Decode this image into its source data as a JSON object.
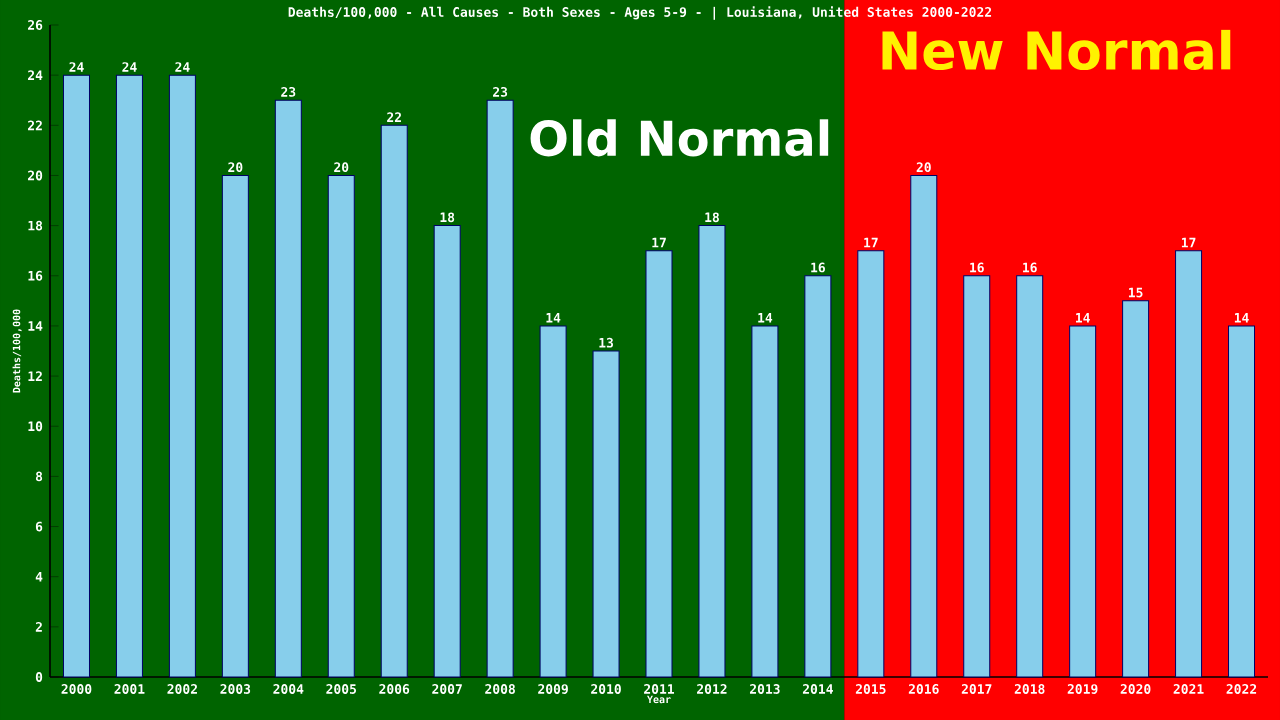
{
  "chart_data": {
    "type": "bar",
    "title": "Deaths/100,000 - All Causes - Both Sexes - Ages 5-9 - | Louisiana, United States 2000-2022",
    "xlabel": "Year",
    "ylabel": "Deaths/100,000",
    "categories": [
      "2000",
      "2001",
      "2002",
      "2003",
      "2004",
      "2005",
      "2006",
      "2007",
      "2008",
      "2009",
      "2010",
      "2011",
      "2012",
      "2013",
      "2014",
      "2015",
      "2016",
      "2017",
      "2018",
      "2019",
      "2020",
      "2021",
      "2022"
    ],
    "values": [
      24,
      24,
      24,
      20,
      23,
      20,
      22,
      18,
      23,
      14,
      13,
      17,
      18,
      14,
      16,
      17,
      20,
      16,
      16,
      14,
      15,
      17,
      14
    ],
    "color": "#87ceeb",
    "ylim": [
      0,
      26
    ],
    "yticks": [
      0,
      2,
      4,
      6,
      8,
      10,
      12,
      14,
      16,
      18,
      20,
      22,
      24,
      26
    ],
    "data_labels": true,
    "bands": [
      {
        "axis": "x",
        "from": "2000",
        "to": "2014",
        "label": "Old Normal",
        "color": "#006400"
      },
      {
        "axis": "x",
        "from": "2015",
        "to": "2022",
        "label": "New Normal",
        "color": "#ff0000"
      }
    ]
  }
}
